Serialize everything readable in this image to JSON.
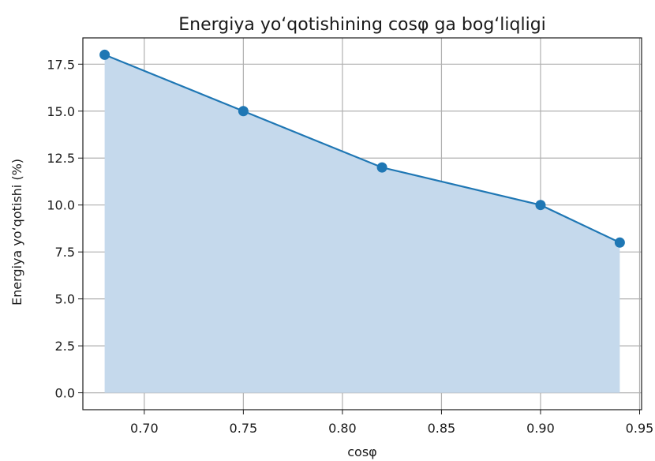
{
  "chart_data": {
    "type": "line",
    "title": "Energiya yo‘qotishining cosφ ga bog‘liqligi",
    "xlabel": "cosφ",
    "ylabel": "Energiya yo‘qotishi (%)",
    "x": [
      0.68,
      0.75,
      0.82,
      0.9,
      0.94
    ],
    "series": [
      {
        "values": [
          18,
          15,
          12,
          10,
          8
        ]
      }
    ],
    "xlim": [
      0.669,
      0.951
    ],
    "ylim": [
      -0.9,
      18.9
    ],
    "xticks": [
      0.7,
      0.75,
      0.8,
      0.85,
      0.9,
      0.95
    ],
    "xtick_labels": [
      "0.70",
      "0.75",
      "0.80",
      "0.85",
      "0.90",
      "0.95"
    ],
    "yticks": [
      0.0,
      2.5,
      5.0,
      7.5,
      10.0,
      12.5,
      15.0,
      17.5
    ],
    "ytick_labels": [
      "0.0",
      "2.5",
      "5.0",
      "7.5",
      "10.0",
      "12.5",
      "15.0",
      "17.5"
    ],
    "grid": true,
    "fill_under": true,
    "line_color": "#1f77b4",
    "fill_color": "#c5d9ec"
  }
}
